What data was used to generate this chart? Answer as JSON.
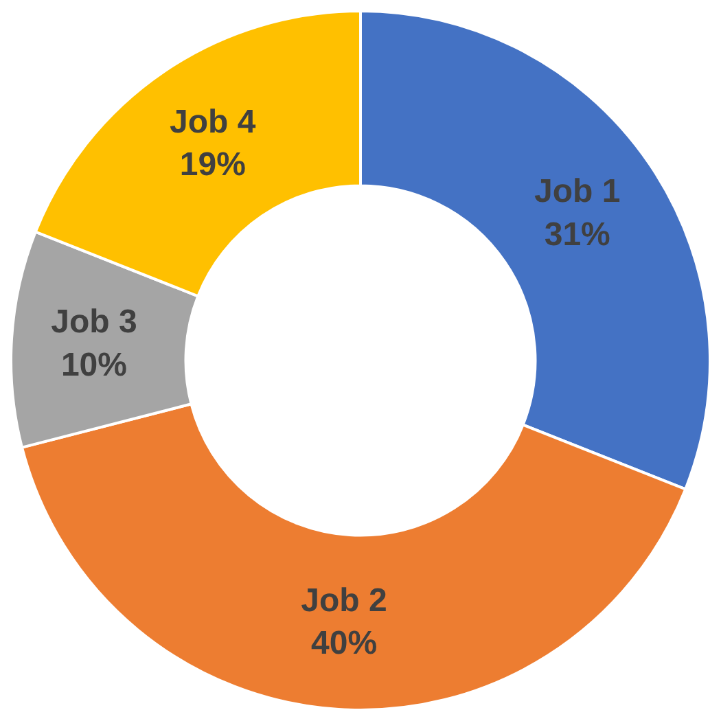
{
  "chart_data": {
    "type": "donut",
    "categories": [
      "Job 1",
      "Job 2",
      "Job 3",
      "Job 4"
    ],
    "values": [
      31,
      40,
      10,
      19
    ],
    "value_labels": [
      "31%",
      "40%",
      "10%",
      "19%"
    ],
    "colors": [
      "#4472c4",
      "#ed7d31",
      "#a5a5a5",
      "#ffc000"
    ],
    "legend": false
  }
}
